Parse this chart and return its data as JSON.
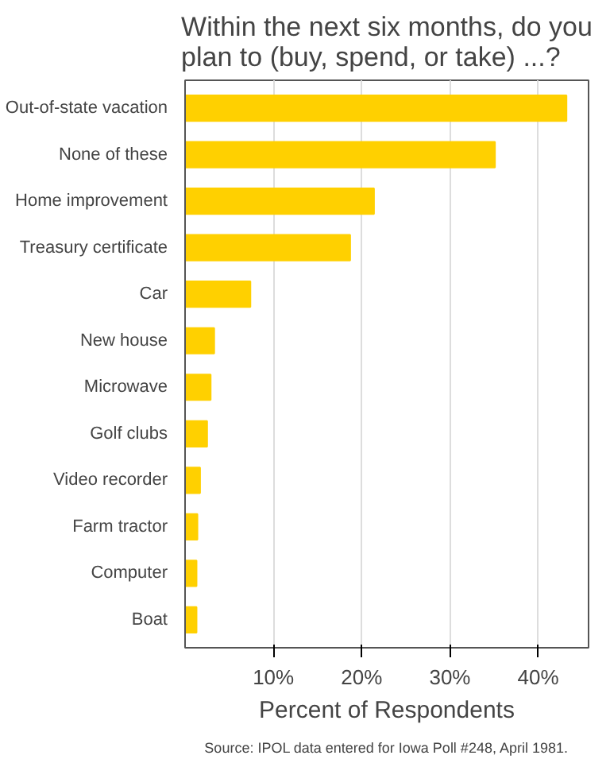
{
  "chart_data": {
    "type": "bar",
    "orientation": "horizontal",
    "title": "Within the next six months, do you\nplan to (buy, spend, or take) ...?",
    "xlabel": "Percent of Respondents",
    "annotations": [
      "Source: IPOL data entered for Iowa Poll #248, April 1981."
    ],
    "categories": [
      "Out-of-state vacation",
      "None of these",
      "Home improvement",
      "Treasury certificate",
      "Car",
      "New house",
      "Microwave",
      "Golf clubs",
      "Video recorder",
      "Farm tractor",
      "Computer",
      "Boat"
    ],
    "values": [
      43.2,
      35.1,
      21.4,
      18.7,
      7.4,
      3.3,
      2.9,
      2.5,
      1.7,
      1.4,
      1.3,
      1.3
    ],
    "color": "#ffd000",
    "xlim": [
      0,
      45.7
    ],
    "xticks": [
      {
        "value": 10,
        "label": "10%"
      },
      {
        "value": 20,
        "label": "20%"
      },
      {
        "value": 30,
        "label": "30%"
      },
      {
        "value": 40,
        "label": "40%"
      }
    ],
    "grid": "x"
  }
}
